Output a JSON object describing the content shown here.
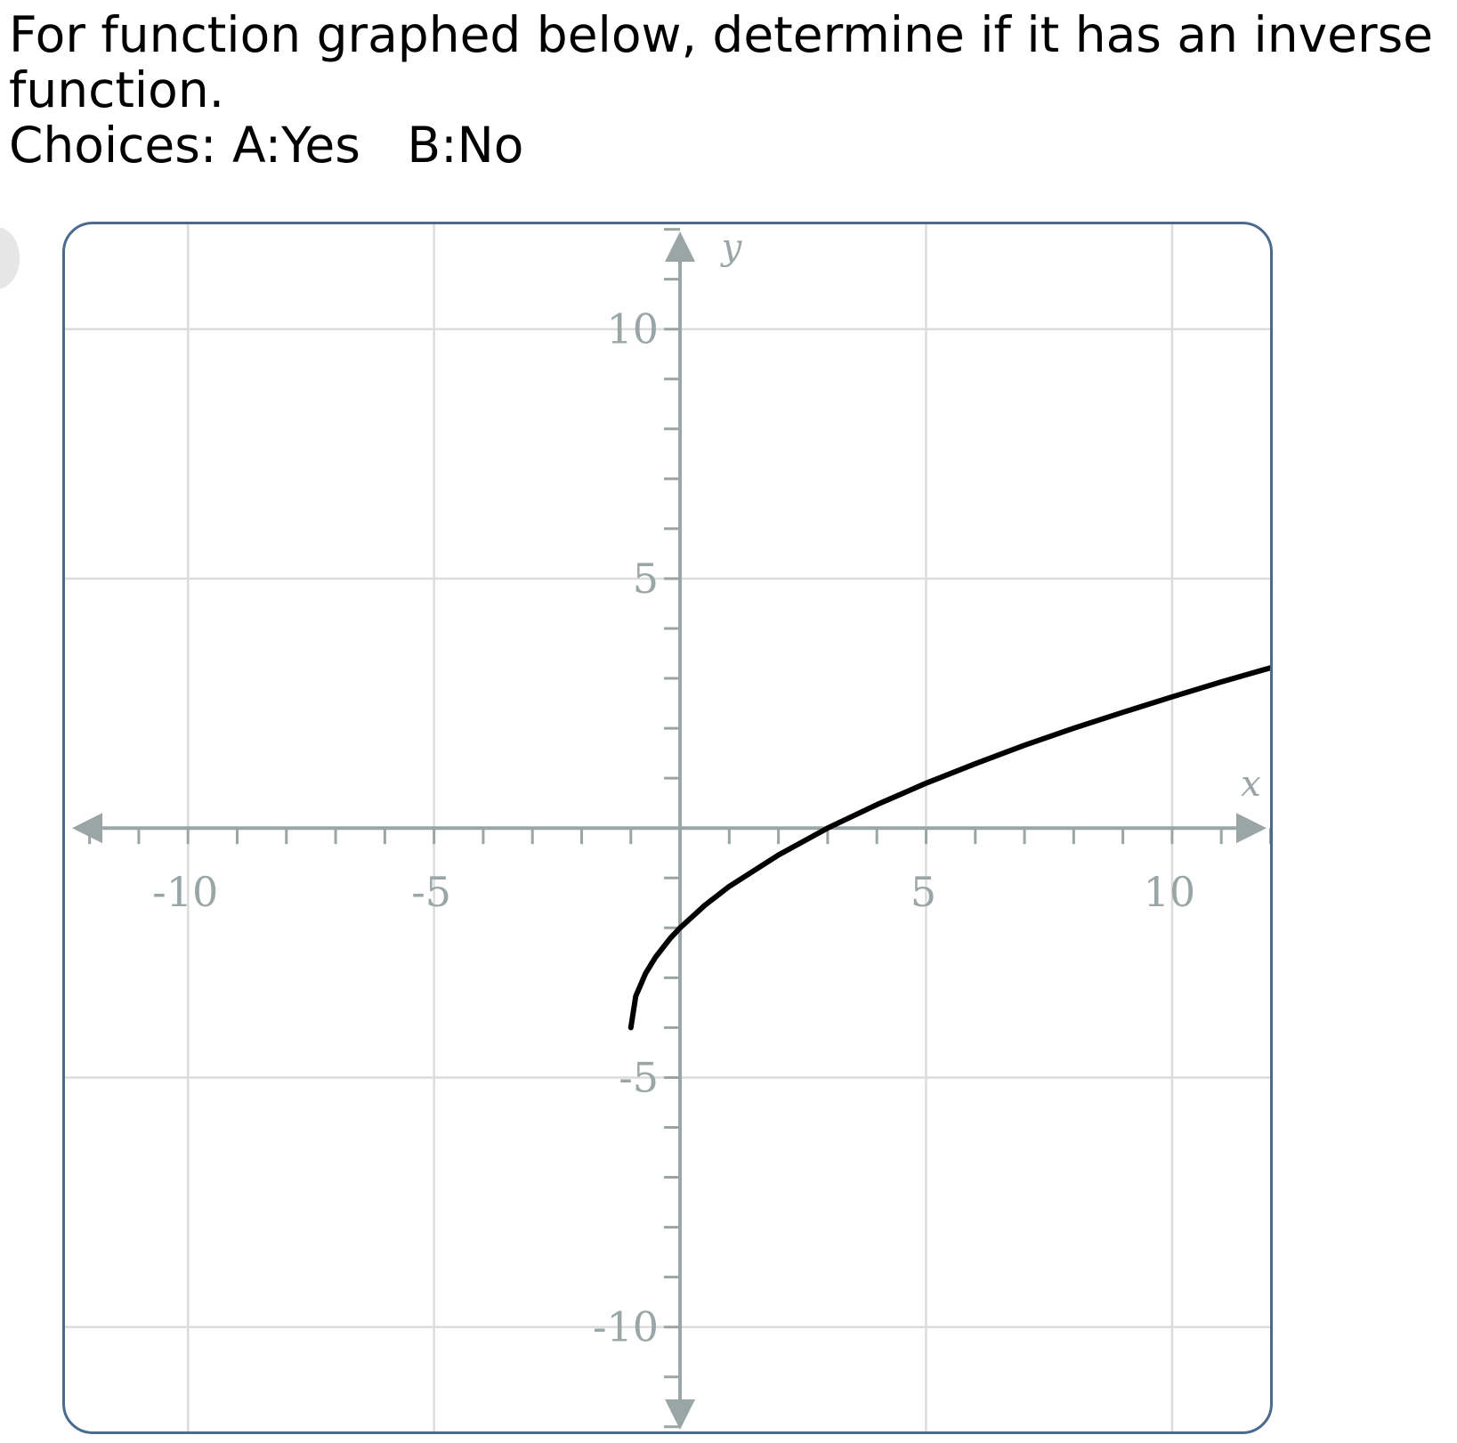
{
  "question": {
    "line1": "For function graphed below, determine if it has an inverse",
    "line2": "function.",
    "choices_prefix": "Choices: ",
    "choice_a": "A:Yes",
    "choice_b": "B:No"
  },
  "chart_data": {
    "type": "line",
    "title": "",
    "xlabel": "x",
    "ylabel": "y",
    "xlim": [
      -12.5,
      12.1
    ],
    "ylim": [
      -12.2,
      12.1
    ],
    "major_ticks": [
      -10,
      -5,
      5,
      10
    ],
    "x_tick_labels": [
      "-10",
      "-5",
      "5",
      "10"
    ],
    "y_tick_labels": [
      "10",
      "5",
      "-5",
      "-10"
    ],
    "minor_tick_step": 1,
    "grid": true,
    "arrows": true,
    "series": [
      {
        "color": "#000000",
        "x": [
          -1,
          -0.9,
          -0.7,
          -0.5,
          -0.2,
          0,
          0.5,
          1,
          2,
          3,
          4,
          5,
          6,
          7,
          8,
          9,
          10,
          11,
          12.1
        ],
        "y": [
          -4,
          -3.37,
          -2.91,
          -2.59,
          -2.21,
          -2,
          -1.55,
          -1.17,
          -0.54,
          0,
          0.47,
          0.9,
          1.29,
          1.66,
          2,
          2.32,
          2.63,
          2.93,
          3.24
        ]
      }
    ],
    "colors": {
      "grid": "#dcdcdc",
      "axis": "#9aa5a5",
      "curve": "#000000",
      "frame": "#4a6a8e"
    }
  }
}
